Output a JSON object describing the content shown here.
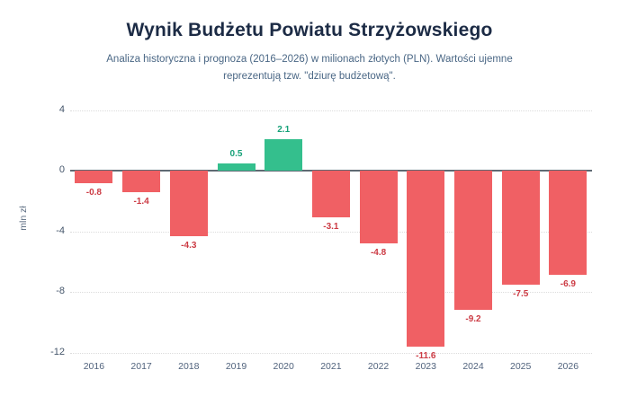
{
  "header": {
    "title": "Wynik Budżetu Powiatu Strzyżowskiego",
    "subtitle": "Analiza historyczna i prognoza (2016–2026) w milionach złotych (PLN). Wartości ujemne reprezentują tzw. \"dziurę budżetową\"."
  },
  "chart_data": {
    "type": "bar",
    "title": "Wynik Budżetu Powiatu Strzyżowskiego",
    "subtitle": "Analiza historyczna i prognoza (2016–2026) w milionach złotych (PLN). Wartości ujemne reprezentują tzw. \"dziurę budżetową\".",
    "categories": [
      "2016",
      "2017",
      "2018",
      "2019",
      "2020",
      "2021",
      "2022",
      "2023",
      "2024",
      "2025",
      "2026"
    ],
    "values": [
      -0.8,
      -1.4,
      -4.3,
      0.5,
      2.1,
      -3.1,
      -4.8,
      -11.6,
      -9.2,
      -7.5,
      -6.9
    ],
    "value_labels": [
      "-0.8",
      "-1.4",
      "-4.3",
      "0.5",
      "2.1",
      "-3.1",
      "-4.8",
      "-11.6",
      "-9.2",
      "-7.5",
      "-6.9"
    ],
    "xlabel": "",
    "ylabel": "mln zł",
    "yticks": [
      4,
      0,
      -4,
      -8,
      -12
    ],
    "ylim": [
      -12,
      4
    ],
    "grid": "horizontal-dotted",
    "legend": "none",
    "colors": {
      "positive_bar": "#34bf8d",
      "negative_bar": "#f06064",
      "positive_label": "#16a178",
      "negative_label": "#cc3b44",
      "zero_line": "#5f6a73",
      "gridline": "#dcdcdc",
      "title": "#1c2b45",
      "subtitle": "#4a6785",
      "axis_text": "#51637d",
      "background": "#ffffff"
    }
  }
}
